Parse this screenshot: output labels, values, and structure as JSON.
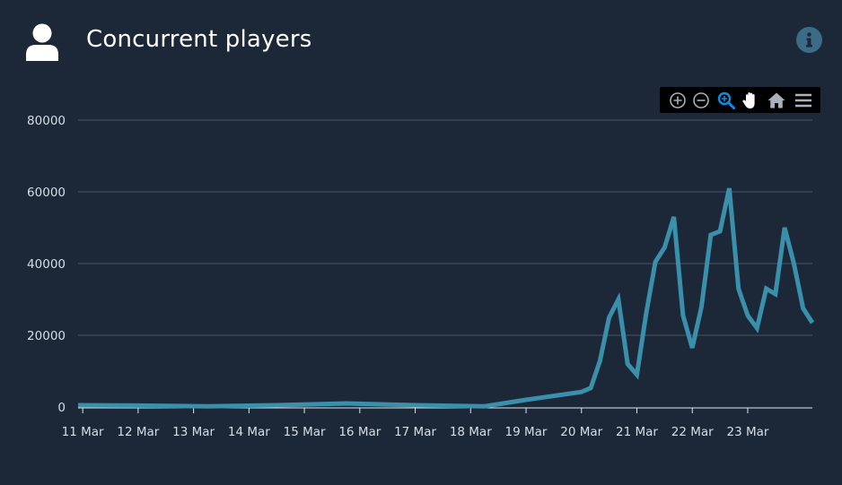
{
  "header": {
    "title": "Concurrent players",
    "user_icon": "user-icon",
    "info_icon": "info-icon"
  },
  "toolbar": {
    "buttons": [
      "zoom-in-icon",
      "zoom-out-icon",
      "selection-zoom-icon",
      "pan-icon",
      "reset-home-icon",
      "menu-icon"
    ],
    "active_color": "#0b8de2"
  },
  "colors": {
    "background": "#1c2838",
    "line": "#3a8fab",
    "grid": "#4a5666",
    "text": "#d6dde6"
  },
  "chart_data": {
    "type": "line",
    "title": "Concurrent players",
    "xlabel": "",
    "ylabel": "",
    "x_domain": [
      "2020-03-10T22:00",
      "2020-03-24T00:00"
    ],
    "ylim": [
      0,
      80000
    ],
    "y_ticks": [
      0,
      20000,
      40000,
      60000,
      80000
    ],
    "y_tick_labels": [
      "0",
      "20000",
      "40000",
      "60000",
      "80000"
    ],
    "x_ticks": [
      "2020-03-11",
      "2020-03-12",
      "2020-03-13",
      "2020-03-14",
      "2020-03-15",
      "2020-03-16",
      "2020-03-17",
      "2020-03-18",
      "2020-03-19",
      "2020-03-20",
      "2020-03-21",
      "2020-03-22",
      "2020-03-23"
    ],
    "x_tick_labels": [
      "11 Mar",
      "12 Mar",
      "13 Mar",
      "14 Mar",
      "15 Mar",
      "16 Mar",
      "17 Mar",
      "18 Mar",
      "19 Mar",
      "20 Mar",
      "21 Mar",
      "22 Mar",
      "23 Mar"
    ],
    "grid": true,
    "series": [
      {
        "color": "#3a8fab",
        "points": [
          [
            "2020-03-10T22:00",
            500
          ],
          [
            "2020-03-12T00:00",
            400
          ],
          [
            "2020-03-13T06:00",
            200
          ],
          [
            "2020-03-14T12:00",
            500
          ],
          [
            "2020-03-15T18:00",
            1000
          ],
          [
            "2020-03-17T00:00",
            500
          ],
          [
            "2020-03-18T06:00",
            200
          ],
          [
            "2020-03-19T00:00",
            2000
          ],
          [
            "2020-03-20T00:00",
            4200
          ],
          [
            "2020-03-20T04:00",
            5300
          ],
          [
            "2020-03-20T08:00",
            12800
          ],
          [
            "2020-03-20T12:00",
            25000
          ],
          [
            "2020-03-20T16:00",
            30000
          ],
          [
            "2020-03-20T20:00",
            12000
          ],
          [
            "2020-03-21T00:00",
            9000
          ],
          [
            "2020-03-21T04:00",
            26000
          ],
          [
            "2020-03-21T08:00",
            40500
          ],
          [
            "2020-03-21T12:00",
            44500
          ],
          [
            "2020-03-21T16:00",
            53000
          ],
          [
            "2020-03-21T20:00",
            25500
          ],
          [
            "2020-03-22T00:00",
            16500
          ],
          [
            "2020-03-22T04:00",
            28000
          ],
          [
            "2020-03-22T08:00",
            48000
          ],
          [
            "2020-03-22T12:00",
            49000
          ],
          [
            "2020-03-22T16:00",
            61000
          ],
          [
            "2020-03-22T20:00",
            33000
          ],
          [
            "2020-03-23T00:00",
            25500
          ],
          [
            "2020-03-23T04:00",
            22000
          ],
          [
            "2020-03-23T08:00",
            33000
          ],
          [
            "2020-03-23T12:00",
            31500
          ],
          [
            "2020-03-23T16:00",
            50000
          ],
          [
            "2020-03-23T20:00",
            40000
          ],
          [
            "2020-03-24T00:00",
            27500
          ],
          [
            "2020-03-24T04:00",
            23500
          ]
        ]
      }
    ]
  }
}
